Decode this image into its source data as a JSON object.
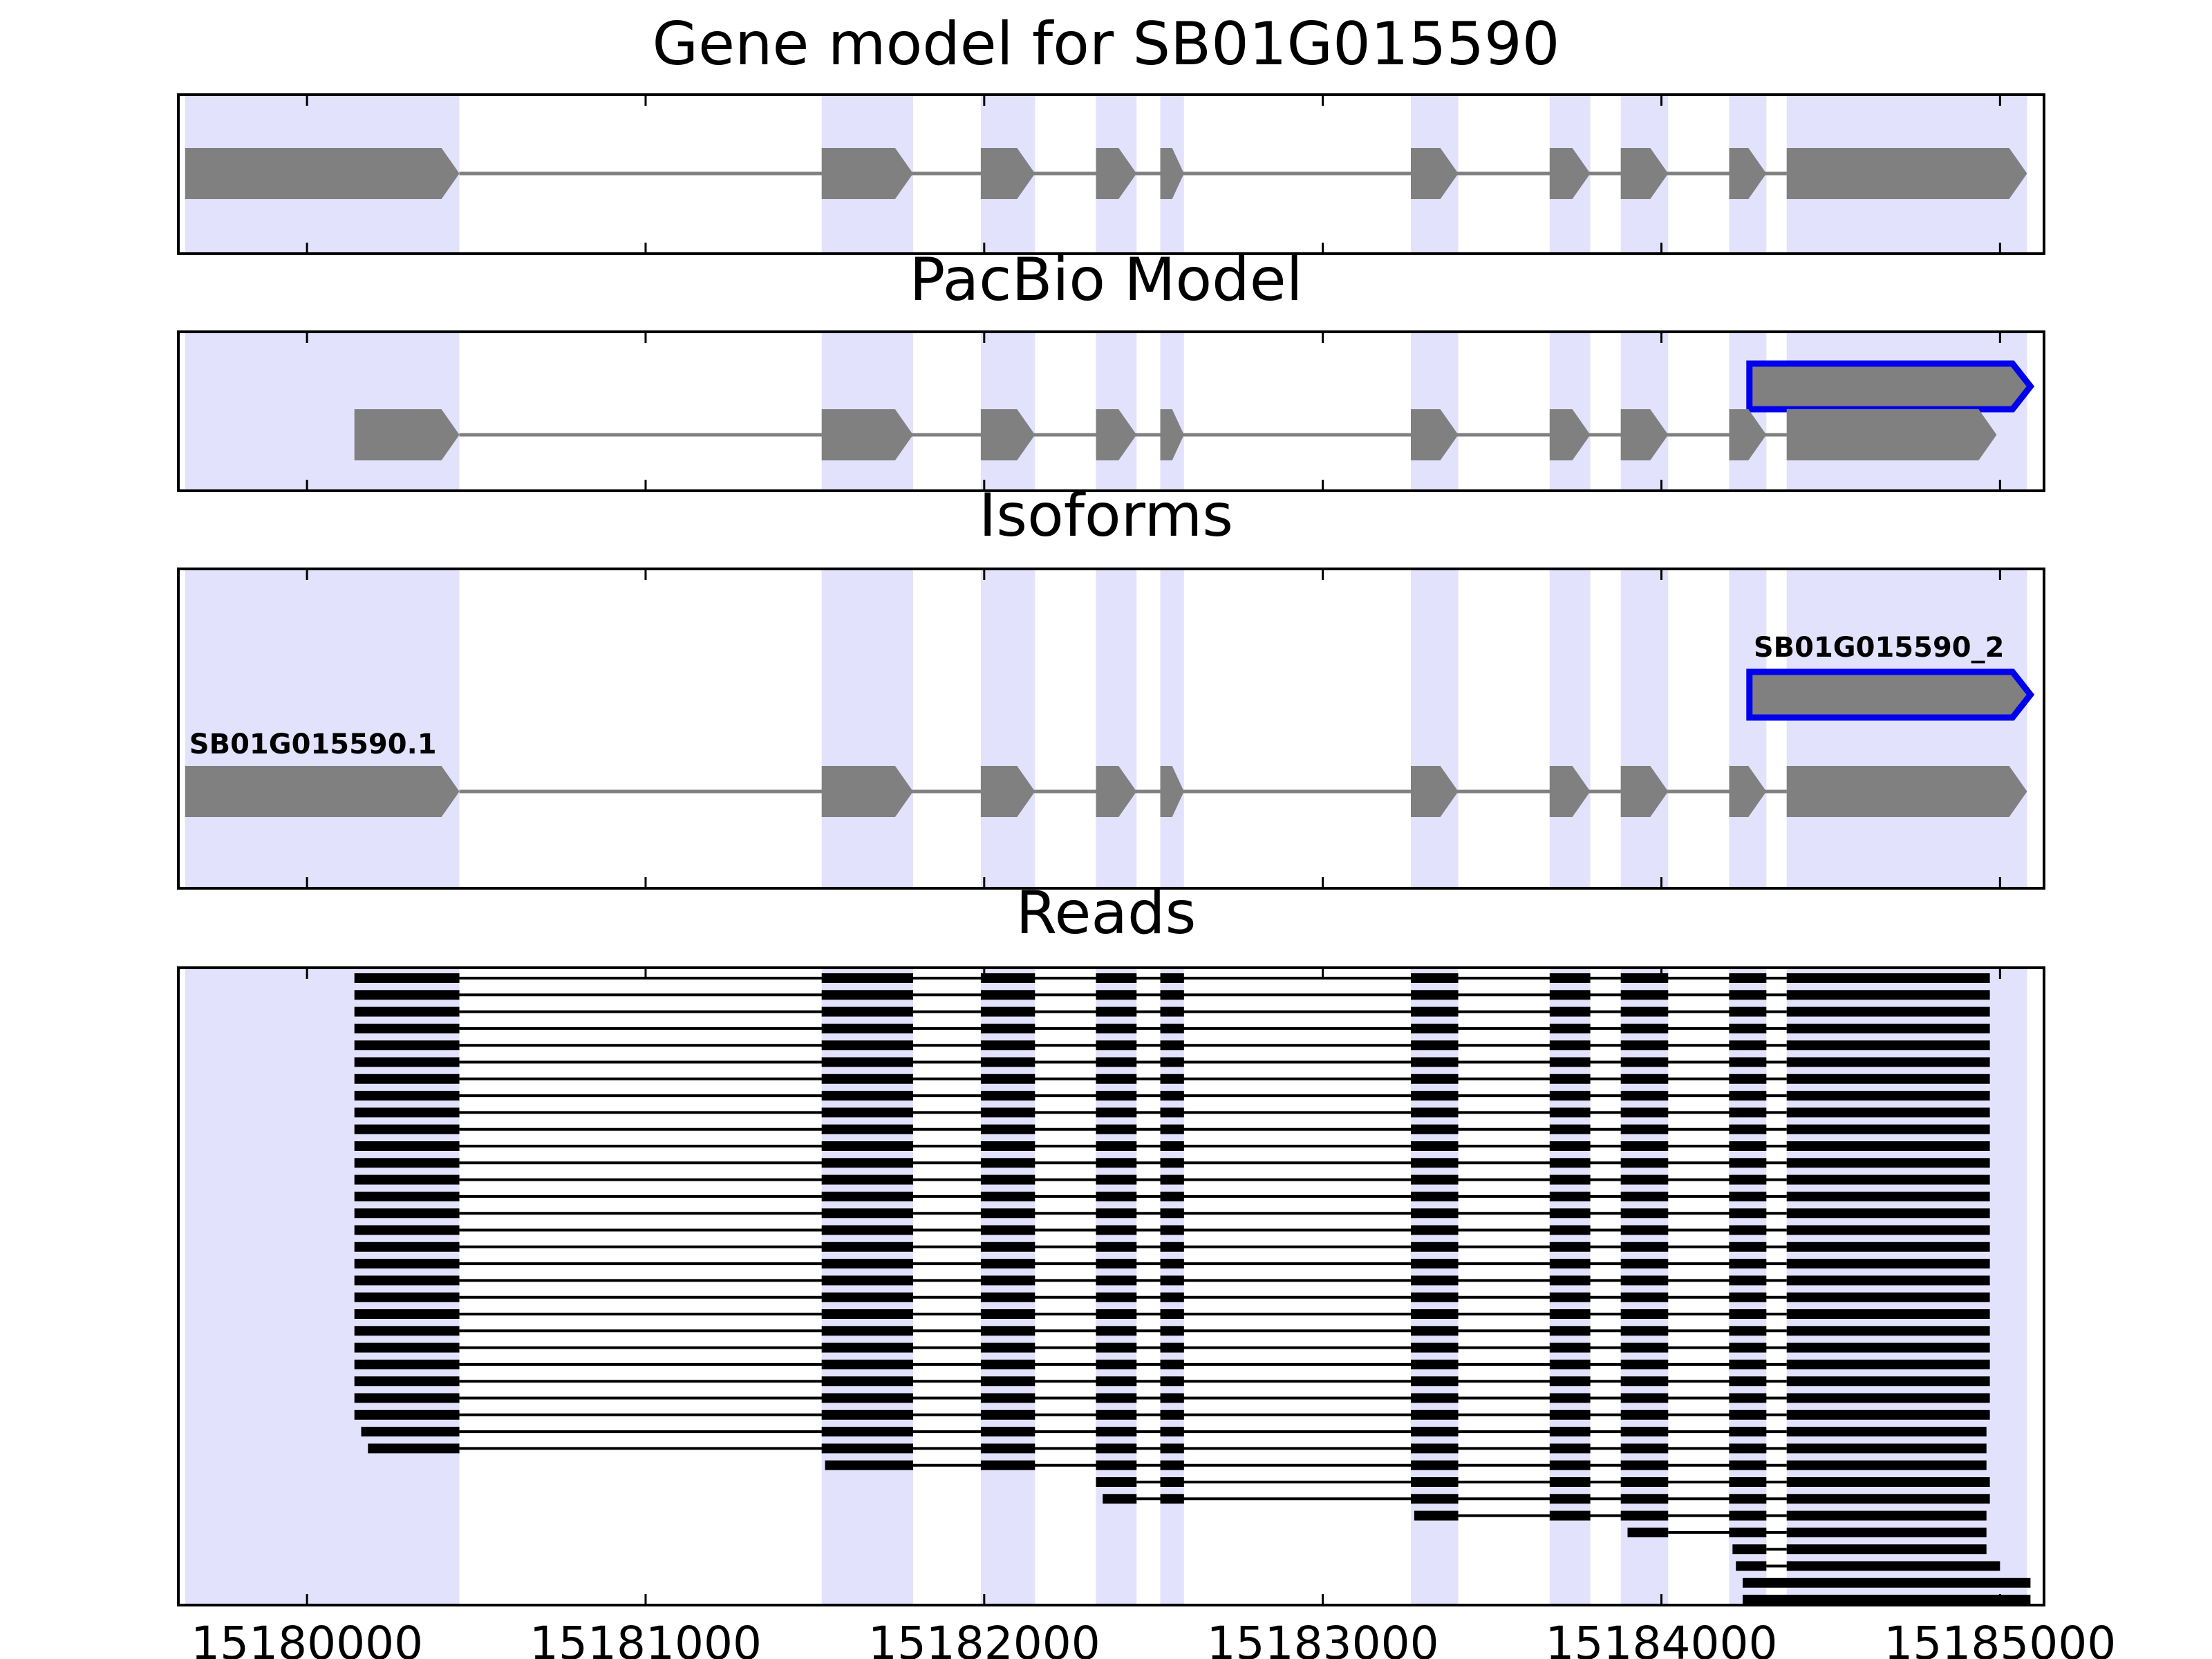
{
  "chart_data": {
    "type": "gene-structure-track",
    "panels": [
      {
        "title": "Gene model for SB01G015590",
        "tracks": [
          {
            "name": "gene",
            "style": "gray",
            "exons": [
              [
                15179640,
                15180450
              ],
              [
                15181520,
                15181790
              ],
              [
                15181990,
                15182150
              ],
              [
                15182330,
                15182450
              ],
              [
                15182520,
                15182590
              ],
              [
                15183260,
                15183400
              ],
              [
                15183670,
                15183790
              ],
              [
                15183880,
                15184020
              ],
              [
                15184200,
                15184310
              ],
              [
                15184370,
                15185080
              ]
            ]
          }
        ]
      },
      {
        "title": "PacBio Model",
        "tracks": [
          {
            "name": "pacbio-2",
            "style": "blue-outline",
            "exons": [
              [
                15184260,
                15185090
              ]
            ]
          },
          {
            "name": "pacbio-1",
            "style": "gray",
            "exons": [
              [
                15180140,
                15180450
              ],
              [
                15181520,
                15181790
              ],
              [
                15181990,
                15182150
              ],
              [
                15182330,
                15182450
              ],
              [
                15182520,
                15182590
              ],
              [
                15183260,
                15183400
              ],
              [
                15183670,
                15183790
              ],
              [
                15183880,
                15184020
              ],
              [
                15184200,
                15184310
              ],
              [
                15184370,
                15184990
              ]
            ]
          }
        ]
      },
      {
        "title": "Isoforms",
        "tracks": [
          {
            "name": "SB01G015590_2",
            "label": "SB01G015590_2",
            "style": "blue-outline",
            "exons": [
              [
                15184260,
                15185090
              ]
            ]
          },
          {
            "name": "SB01G015590.1",
            "label": "SB01G015590.1",
            "style": "gray",
            "exons": [
              [
                15179640,
                15180450
              ],
              [
                15181520,
                15181790
              ],
              [
                15181990,
                15182150
              ],
              [
                15182330,
                15182450
              ],
              [
                15182520,
                15182590
              ],
              [
                15183260,
                15183400
              ],
              [
                15183670,
                15183790
              ],
              [
                15183880,
                15184020
              ],
              [
                15184200,
                15184310
              ],
              [
                15184370,
                15185080
              ]
            ]
          }
        ]
      },
      {
        "title": "Reads",
        "read_groups": [
          {
            "count": 27,
            "exons": [
              [
                15180140,
                15180450
              ],
              [
                15181520,
                15181790
              ],
              [
                15181990,
                15182150
              ],
              [
                15182330,
                15182450
              ],
              [
                15182520,
                15182590
              ],
              [
                15183260,
                15183400
              ],
              [
                15183670,
                15183790
              ],
              [
                15183880,
                15184020
              ],
              [
                15184200,
                15184310
              ],
              [
                15184370,
                15184970
              ]
            ]
          },
          {
            "count": 1,
            "exons": [
              [
                15180160,
                15180450
              ],
              [
                15181520,
                15181790
              ],
              [
                15181990,
                15182150
              ],
              [
                15182330,
                15182450
              ],
              [
                15182520,
                15182590
              ],
              [
                15183260,
                15183400
              ],
              [
                15183670,
                15183790
              ],
              [
                15183880,
                15184020
              ],
              [
                15184200,
                15184310
              ],
              [
                15184370,
                15184960
              ]
            ]
          },
          {
            "count": 1,
            "exons": [
              [
                15180180,
                15180450
              ],
              [
                15181520,
                15181790
              ],
              [
                15181990,
                15182150
              ],
              [
                15182330,
                15182450
              ],
              [
                15182520,
                15182590
              ],
              [
                15183260,
                15183400
              ],
              [
                15183670,
                15183790
              ],
              [
                15183880,
                15184020
              ],
              [
                15184200,
                15184310
              ],
              [
                15184370,
                15184960
              ]
            ]
          },
          {
            "count": 1,
            "exons": [
              [
                15181530,
                15181790
              ],
              [
                15181990,
                15182150
              ],
              [
                15182330,
                15182450
              ],
              [
                15182520,
                15182590
              ],
              [
                15183260,
                15183400
              ],
              [
                15183670,
                15183790
              ],
              [
                15183880,
                15184020
              ],
              [
                15184200,
                15184310
              ],
              [
                15184370,
                15184960
              ]
            ]
          },
          {
            "count": 1,
            "exons": [
              [
                15182330,
                15182450
              ],
              [
                15182520,
                15182590
              ],
              [
                15183260,
                15183400
              ],
              [
                15183670,
                15183790
              ],
              [
                15183880,
                15184020
              ],
              [
                15184200,
                15184310
              ],
              [
                15184370,
                15184970
              ]
            ]
          },
          {
            "count": 1,
            "exons": [
              [
                15182350,
                15182450
              ],
              [
                15182520,
                15182590
              ],
              [
                15183260,
                15183400
              ],
              [
                15183670,
                15183790
              ],
              [
                15183880,
                15184020
              ],
              [
                15184200,
                15184310
              ],
              [
                15184370,
                15184970
              ]
            ]
          },
          {
            "count": 1,
            "exons": [
              [
                15183270,
                15183400
              ],
              [
                15183670,
                15183790
              ],
              [
                15183880,
                15184020
              ],
              [
                15184200,
                15184310
              ],
              [
                15184370,
                15184960
              ]
            ]
          },
          {
            "count": 1,
            "exons": [
              [
                15183900,
                15184020
              ],
              [
                15184200,
                15184310
              ],
              [
                15184370,
                15184960
              ]
            ]
          },
          {
            "count": 1,
            "exons": [
              [
                15184210,
                15184310
              ],
              [
                15184370,
                15184960
              ]
            ]
          },
          {
            "count": 1,
            "exons": [
              [
                15184220,
                15184310
              ],
              [
                15184370,
                15185000
              ]
            ]
          },
          {
            "count": 2,
            "exons": [
              [
                15184240,
                15185090
              ]
            ]
          }
        ]
      }
    ],
    "highlight_regions": [
      [
        15179640,
        15180450
      ],
      [
        15181520,
        15181790
      ],
      [
        15181990,
        15182150
      ],
      [
        15182330,
        15182450
      ],
      [
        15182520,
        15182590
      ],
      [
        15183260,
        15183400
      ],
      [
        15183670,
        15183790
      ],
      [
        15183880,
        15184020
      ],
      [
        15184200,
        15184310
      ],
      [
        15184370,
        15185080
      ]
    ],
    "xlim": [
      15179620,
      15185130
    ],
    "xticks": [
      15180000,
      15181000,
      15182000,
      15183000,
      15184000,
      15185000
    ],
    "xtick_labels": [
      "15180000",
      "15181000",
      "15182000",
      "15183000",
      "15184000",
      "15185000"
    ],
    "colors": {
      "highlight": "#e2e2fd",
      "exon": "#808080",
      "intron": "#808080",
      "outline": "#0000ee",
      "read": "#000000",
      "axes": "#000000"
    }
  }
}
